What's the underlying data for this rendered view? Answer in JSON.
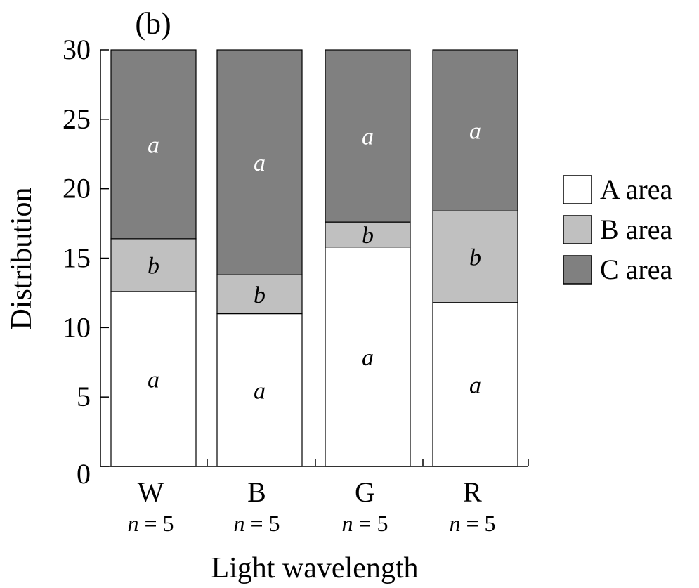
{
  "chart_data": {
    "type": "bar",
    "stacked": true,
    "panel_label": "(b)",
    "xlabel": "Light wavelength",
    "ylabel": "Distribution",
    "ylim": [
      0,
      30
    ],
    "yticks": [
      "0",
      "5",
      "10",
      "15",
      "20",
      "25",
      "30"
    ],
    "categories": [
      "W",
      "B",
      "G",
      "R"
    ],
    "sample_sizes": [
      {
        "n": "n",
        "eq": " = 5"
      },
      {
        "n": "n",
        "eq": " = 5"
      },
      {
        "n": "n",
        "eq": " = 5"
      },
      {
        "n": "n",
        "eq": " = 5"
      }
    ],
    "series": [
      {
        "name": "A area",
        "color": "#ffffff",
        "text_color": "#000000",
        "values": [
          12.6,
          11.0,
          15.8,
          11.8
        ],
        "labels": [
          "a",
          "a",
          "a",
          "a"
        ]
      },
      {
        "name": "B area",
        "color": "#c0c0c0",
        "text_color": "#000000",
        "values": [
          3.8,
          2.8,
          1.8,
          6.6
        ],
        "labels": [
          "b",
          "b",
          "b",
          "b"
        ]
      },
      {
        "name": "C area",
        "color": "#808080",
        "text_color": "#ffffff",
        "values": [
          13.6,
          16.2,
          12.4,
          11.6
        ],
        "labels": [
          "a",
          "a",
          "a",
          "a"
        ]
      }
    ],
    "legend_position": "right",
    "grid": false
  }
}
